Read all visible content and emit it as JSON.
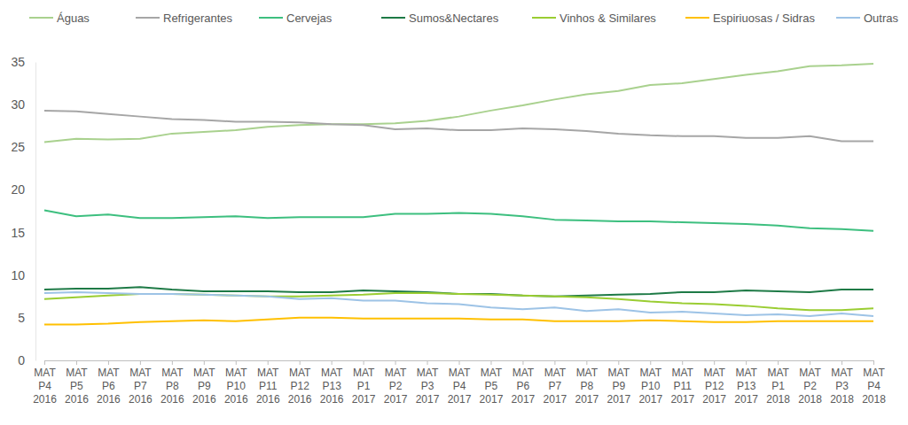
{
  "chart_data": {
    "type": "line",
    "categories": [
      "MAT P4 2016",
      "MAT P5 2016",
      "MAT P6 2016",
      "MAT P7 2016",
      "MAT P8 2016",
      "MAT P9 2016",
      "MAT P10 2016",
      "MAT P11 2016",
      "MAT P12 2016",
      "MAT P13 2016",
      "MAT P1 2017",
      "MAT P2 2017",
      "MAT P3 2017",
      "MAT P4 2017",
      "MAT P5 2017",
      "MAT P6 2017",
      "MAT P7 2017",
      "MAT P8 2017",
      "MAT P9 2017",
      "MAT P10 2017",
      "MAT P11 2017",
      "MAT P12 2017",
      "MAT P13 2017",
      "MAT P1 2018",
      "MAT P2 2018",
      "MAT P3 2018",
      "MAT P4 2018"
    ],
    "series": [
      {
        "name": "Águas",
        "color": "#a9d18e",
        "values": [
          25.6,
          26.0,
          25.9,
          26.0,
          26.6,
          26.8,
          27.0,
          27.4,
          27.6,
          27.7,
          27.7,
          27.8,
          28.1,
          28.6,
          29.3,
          29.9,
          30.6,
          31.2,
          31.6,
          32.3,
          32.5,
          33.0,
          33.5,
          33.9,
          34.5,
          34.6,
          34.8
        ]
      },
      {
        "name": "Refrigerantes",
        "color": "#a6a6a6",
        "values": [
          29.3,
          29.2,
          28.9,
          28.6,
          28.3,
          28.2,
          28.0,
          28.0,
          27.9,
          27.7,
          27.6,
          27.1,
          27.2,
          27.0,
          27.0,
          27.2,
          27.1,
          26.9,
          26.6,
          26.4,
          26.3,
          26.3,
          26.1,
          26.1,
          26.3,
          25.7,
          25.7
        ]
      },
      {
        "name": "Cervejas",
        "color": "#3dbf7f",
        "values": [
          17.6,
          16.9,
          17.1,
          16.7,
          16.7,
          16.8,
          16.9,
          16.7,
          16.8,
          16.8,
          16.8,
          17.2,
          17.2,
          17.3,
          17.2,
          16.9,
          16.5,
          16.4,
          16.3,
          16.3,
          16.2,
          16.1,
          16.0,
          15.8,
          15.5,
          15.4,
          15.2
        ]
      },
      {
        "name": "Sumos&Nectares",
        "color": "#1e7a46",
        "values": [
          8.3,
          8.4,
          8.4,
          8.6,
          8.3,
          8.1,
          8.1,
          8.1,
          8.0,
          8.0,
          8.2,
          8.1,
          8.0,
          7.8,
          7.8,
          7.6,
          7.5,
          7.6,
          7.7,
          7.8,
          8.0,
          8.0,
          8.2,
          8.1,
          8.0,
          8.3,
          8.3
        ]
      },
      {
        "name": "Vinhos & Similares",
        "color": "#9acd32",
        "values": [
          7.2,
          7.4,
          7.6,
          7.8,
          7.8,
          7.7,
          7.6,
          7.5,
          7.5,
          7.6,
          7.7,
          7.9,
          7.9,
          7.8,
          7.7,
          7.6,
          7.5,
          7.4,
          7.2,
          6.9,
          6.7,
          6.6,
          6.4,
          6.1,
          5.9,
          5.9,
          6.1
        ]
      },
      {
        "name": "Espiriuosas / Sidras",
        "color": "#ffc000",
        "values": [
          4.2,
          4.2,
          4.3,
          4.5,
          4.6,
          4.7,
          4.6,
          4.8,
          5.0,
          5.0,
          4.9,
          4.9,
          4.9,
          4.9,
          4.8,
          4.8,
          4.6,
          4.6,
          4.6,
          4.7,
          4.6,
          4.5,
          4.5,
          4.6,
          4.6,
          4.6,
          4.6
        ]
      },
      {
        "name": "Outras",
        "color": "#9dc3e6",
        "values": [
          7.9,
          8.0,
          7.9,
          7.8,
          7.8,
          7.7,
          7.6,
          7.5,
          7.2,
          7.3,
          7.0,
          7.0,
          6.7,
          6.6,
          6.2,
          6.0,
          6.2,
          5.8,
          6.0,
          5.6,
          5.7,
          5.5,
          5.3,
          5.4,
          5.2,
          5.5,
          5.2
        ]
      }
    ],
    "ylim": [
      0,
      35
    ],
    "yticks": [
      0,
      5,
      10,
      15,
      20,
      25,
      30,
      35
    ],
    "grid": false,
    "legend": "top"
  }
}
